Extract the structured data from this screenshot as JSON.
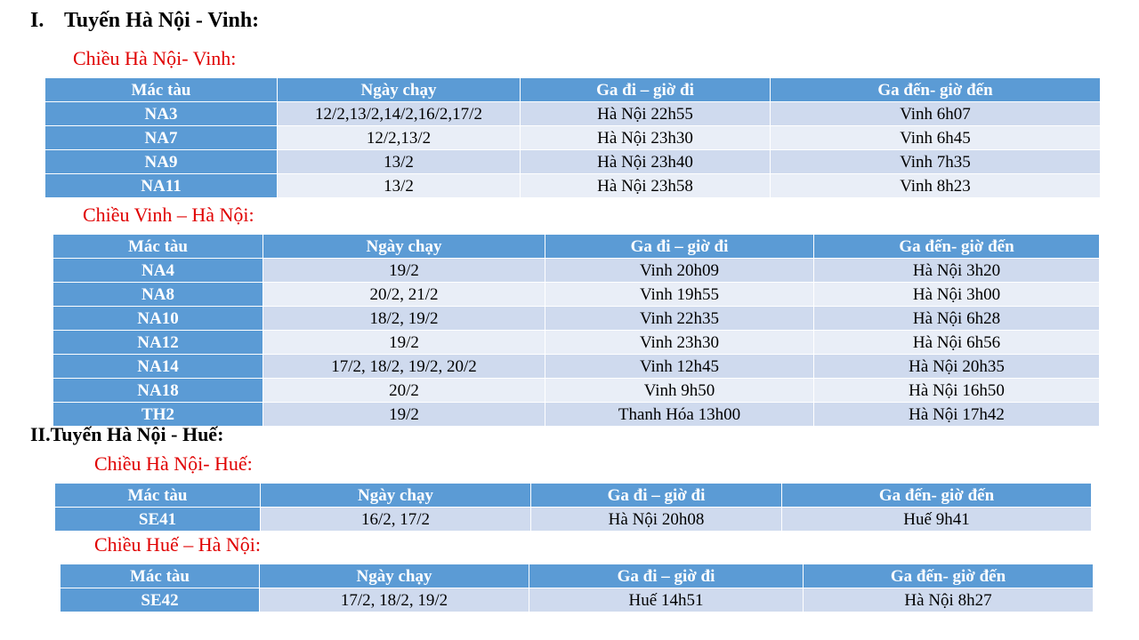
{
  "section1": {
    "number": "I.",
    "title": "Tuyến Hà Nội - Vinh:",
    "tables": [
      {
        "direction": "Chiều Hà Nội- Vinh:",
        "headers": [
          "Mác tàu",
          "Ngày chạy",
          "Ga đi – giờ đi",
          "Ga đến- giờ đến"
        ],
        "rows": [
          [
            "NA3",
            "12/2,13/2,14/2,16/2,17/2",
            "Hà Nội 22h55",
            "Vinh 6h07"
          ],
          [
            "NA7",
            "12/2,13/2",
            "Hà Nội 23h30",
            "Vinh 6h45"
          ],
          [
            "NA9",
            "13/2",
            "Hà Nội 23h40",
            "Vinh 7h35"
          ],
          [
            "NA11",
            "13/2",
            "Hà Nội 23h58",
            "Vinh 8h23"
          ]
        ]
      },
      {
        "direction": "Chiều Vinh – Hà Nội:",
        "headers": [
          "Mác tàu",
          "Ngày chạy",
          "Ga đi – giờ đi",
          "Ga đến- giờ đến"
        ],
        "rows": [
          [
            "NA4",
            "19/2",
            "Vinh 20h09",
            "Hà Nội 3h20"
          ],
          [
            "NA8",
            "20/2, 21/2",
            "Vinh 19h55",
            "Hà Nội 3h00"
          ],
          [
            "NA10",
            "18/2, 19/2",
            "Vinh 22h35",
            "Hà Nội 6h28"
          ],
          [
            "NA12",
            "19/2",
            "Vinh 23h30",
            "Hà Nội 6h56"
          ],
          [
            "NA14",
            "17/2, 18/2, 19/2, 20/2",
            "Vinh 12h45",
            "Hà Nội 20h35"
          ],
          [
            "NA18",
            "20/2",
            "Vinh 9h50",
            "Hà Nội 16h50"
          ],
          [
            "TH2",
            "19/2",
            "Thanh Hóa 13h00",
            "Hà Nội 17h42"
          ]
        ]
      }
    ]
  },
  "section2": {
    "title": "II.Tuyến Hà Nội - Huế:",
    "tables": [
      {
        "direction": "Chiều Hà Nội- Huế:",
        "headers": [
          "Mác tàu",
          "Ngày chạy",
          "Ga đi – giờ đi",
          "Ga đến- giờ đến"
        ],
        "rows": [
          [
            "SE41",
            "16/2, 17/2",
            "Hà Nội 20h08",
            "Huế 9h41"
          ]
        ]
      },
      {
        "direction": "Chiều Huế – Hà Nội:",
        "headers": [
          "Mác tàu",
          "Ngày chạy",
          "Ga đi – giờ đi",
          "Ga đến- giờ đến"
        ],
        "rows": [
          [
            "SE42",
            "17/2, 18/2, 19/2",
            "Huế 14h51",
            "Hà Nội 8h27"
          ]
        ]
      }
    ]
  },
  "colors": {
    "header_blue": "#5b9bd5",
    "row_band_dark": "#cfdaee",
    "row_band_light": "#e9eef7",
    "direction_red": "#e00000"
  }
}
